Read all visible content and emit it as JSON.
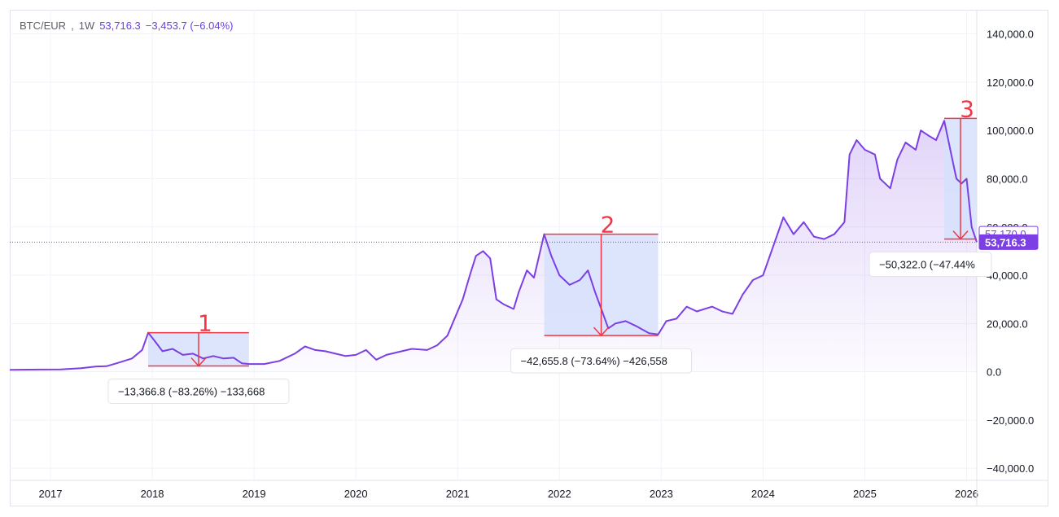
{
  "legend": {
    "symbol": "BTC/EUR",
    "interval": "1W",
    "price": "53,716.3",
    "change": "−3,453.7 (−6.04%)"
  },
  "colors": {
    "line": "#7b3fe4",
    "grid": "#f0f3fa",
    "drawdown_fill": "#d6e1fb",
    "drawdown_stroke": "#f23645",
    "price_tag": "#7b3fe4"
  },
  "chart_data": {
    "type": "area",
    "x_unit": "year",
    "x_ticks": [
      "2017",
      "2018",
      "2019",
      "2020",
      "2021",
      "2022",
      "2023",
      "2024",
      "2025",
      "2026"
    ],
    "y_ticks": [
      "140,000.0",
      "120,000.0",
      "100,000.0",
      "80,000.0",
      "60,000.0",
      "40,000.0",
      "20,000.0",
      "0.0",
      "−20,000.0",
      "−40,000.0"
    ],
    "ylim": [
      -45000,
      150000
    ],
    "xlim": [
      2016.6,
      2026.1
    ],
    "grid": true,
    "series": [
      {
        "points": [
          [
            2016.6,
            800
          ],
          [
            2016.9,
            900
          ],
          [
            2017.1,
            1000
          ],
          [
            2017.3,
            1500
          ],
          [
            2017.45,
            2200
          ],
          [
            2017.55,
            2300
          ],
          [
            2017.65,
            3500
          ],
          [
            2017.8,
            5500
          ],
          [
            2017.9,
            9000
          ],
          [
            2017.96,
            16200
          ],
          [
            2018.02,
            13000
          ],
          [
            2018.1,
            8500
          ],
          [
            2018.2,
            9500
          ],
          [
            2018.3,
            7000
          ],
          [
            2018.4,
            7500
          ],
          [
            2018.5,
            5500
          ],
          [
            2018.6,
            6500
          ],
          [
            2018.7,
            5500
          ],
          [
            2018.8,
            5800
          ],
          [
            2018.88,
            3500
          ],
          [
            2018.95,
            3200
          ],
          [
            2019.1,
            3200
          ],
          [
            2019.25,
            4500
          ],
          [
            2019.4,
            7500
          ],
          [
            2019.5,
            10500
          ],
          [
            2019.6,
            9000
          ],
          [
            2019.7,
            8500
          ],
          [
            2019.8,
            7500
          ],
          [
            2019.9,
            6500
          ],
          [
            2020.0,
            7000
          ],
          [
            2020.1,
            9000
          ],
          [
            2020.2,
            5000
          ],
          [
            2020.3,
            7000
          ],
          [
            2020.45,
            8500
          ],
          [
            2020.55,
            9500
          ],
          [
            2020.7,
            9000
          ],
          [
            2020.8,
            11000
          ],
          [
            2020.9,
            15000
          ],
          [
            2021.0,
            25000
          ],
          [
            2021.05,
            30000
          ],
          [
            2021.12,
            40000
          ],
          [
            2021.18,
            48000
          ],
          [
            2021.25,
            50000
          ],
          [
            2021.32,
            47000
          ],
          [
            2021.38,
            30000
          ],
          [
            2021.45,
            28000
          ],
          [
            2021.55,
            26000
          ],
          [
            2021.6,
            33000
          ],
          [
            2021.68,
            42000
          ],
          [
            2021.75,
            39000
          ],
          [
            2021.85,
            57000
          ],
          [
            2021.92,
            48000
          ],
          [
            2022.0,
            40000
          ],
          [
            2022.1,
            36000
          ],
          [
            2022.2,
            38000
          ],
          [
            2022.28,
            42000
          ],
          [
            2022.35,
            33000
          ],
          [
            2022.42,
            25000
          ],
          [
            2022.48,
            18000
          ],
          [
            2022.55,
            20000
          ],
          [
            2022.65,
            21000
          ],
          [
            2022.75,
            19000
          ],
          [
            2022.88,
            16000
          ],
          [
            2022.97,
            15500
          ],
          [
            2023.05,
            21000
          ],
          [
            2023.15,
            22000
          ],
          [
            2023.25,
            27000
          ],
          [
            2023.35,
            25000
          ],
          [
            2023.5,
            27000
          ],
          [
            2023.6,
            25000
          ],
          [
            2023.7,
            24000
          ],
          [
            2023.8,
            32000
          ],
          [
            2023.9,
            38000
          ],
          [
            2024.0,
            40000
          ],
          [
            2024.1,
            52000
          ],
          [
            2024.2,
            64000
          ],
          [
            2024.3,
            57000
          ],
          [
            2024.4,
            62000
          ],
          [
            2024.5,
            56000
          ],
          [
            2024.6,
            55000
          ],
          [
            2024.7,
            57000
          ],
          [
            2024.8,
            62000
          ],
          [
            2024.85,
            90000
          ],
          [
            2024.92,
            96000
          ],
          [
            2025.0,
            92000
          ],
          [
            2025.1,
            90000
          ],
          [
            2025.15,
            80000
          ],
          [
            2025.25,
            76000
          ],
          [
            2025.32,
            88000
          ],
          [
            2025.4,
            95000
          ],
          [
            2025.5,
            92000
          ],
          [
            2025.55,
            100000
          ],
          [
            2025.62,
            98000
          ],
          [
            2025.7,
            96000
          ],
          [
            2025.78,
            104000
          ],
          [
            2025.85,
            90000
          ],
          [
            2025.9,
            80000
          ],
          [
            2025.95,
            78000
          ],
          [
            2026.0,
            80000
          ],
          [
            2026.05,
            60000
          ],
          [
            2026.1,
            53716
          ]
        ]
      }
    ],
    "drawdowns": [
      {
        "number": "1",
        "x_start": 2017.96,
        "x_end": 2018.95,
        "high": 16200,
        "low": 2400,
        "label": "−13,366.8 (−83.26%) −133,668"
      },
      {
        "number": "2",
        "x_start": 2021.85,
        "x_end": 2022.97,
        "high": 57000,
        "low": 15000,
        "label": "−42,655.8 (−73.64%) −426,558"
      },
      {
        "number": "3",
        "x_start": 2025.78,
        "x_end": 2026.1,
        "high": 105000,
        "low": 55000,
        "label": "−50,322.0 (−47.44%"
      }
    ],
    "price_tags": [
      {
        "value": 57170,
        "text": "57,170.0",
        "style": "outline"
      },
      {
        "value": 53716.3,
        "text": "53,716.3",
        "style": "filled"
      }
    ]
  }
}
